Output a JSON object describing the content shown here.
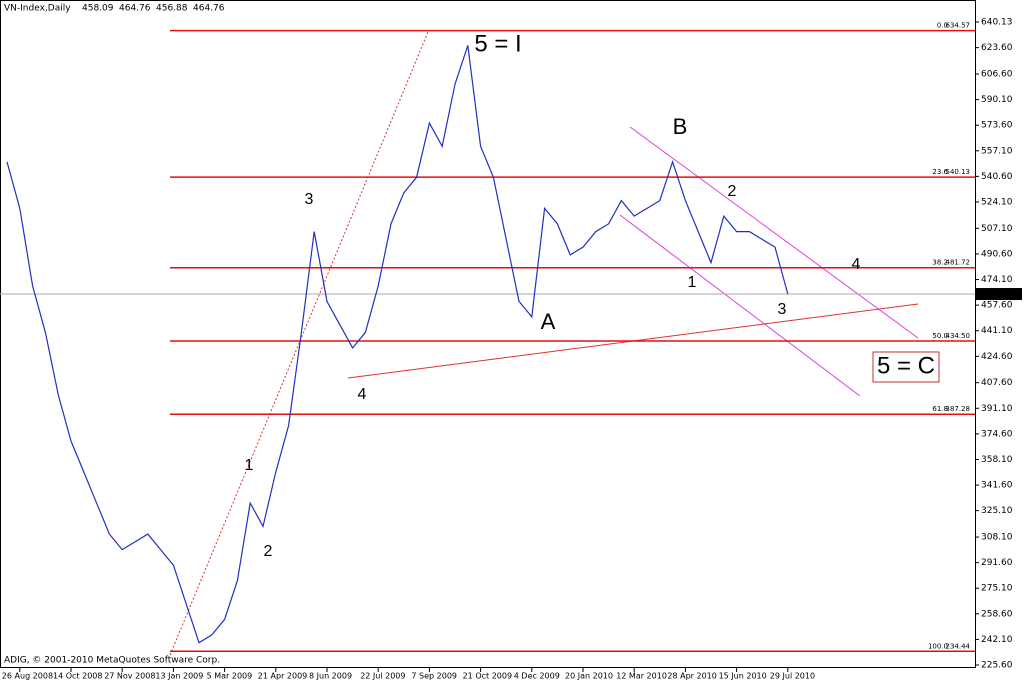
{
  "chart_data": {
    "type": "line",
    "title": "VN-Index,Daily",
    "ohlc": [
      {
        "value": 458.09,
        "label": "458.09"
      },
      {
        "value": 464.76,
        "label": "464.76"
      },
      {
        "value": 456.88,
        "label": "456.88"
      },
      {
        "value": 464.76,
        "label": "464.76"
      }
    ],
    "copyright": "ADIG, © 2001-2010 MetaQuotes Software Corp.",
    "last_price": {
      "value": 464.76,
      "label": "464.76"
    },
    "categories": [
      null,
      "26 Aug 2008",
      null,
      null,
      null,
      "14 Oct 2008",
      null,
      null,
      null,
      "27 Nov 2008",
      null,
      null,
      null,
      "13 Jan 2009",
      null,
      null,
      null,
      "5 Mar 2009",
      null,
      null,
      null,
      "21 Apr 2009",
      null,
      null,
      null,
      "8 Jun 2009",
      null,
      null,
      null,
      "22 Jul 2009",
      null,
      null,
      null,
      "7 Sep 2009",
      null,
      null,
      null,
      "21 Oct 2009",
      null,
      null,
      null,
      "4 Dec 2009",
      null,
      null,
      null,
      "20 Jan 2010",
      null,
      null,
      null,
      "12 Mar 2010",
      null,
      null,
      null,
      "28 Apr 2010",
      null,
      null,
      null,
      "15 Jun 2010",
      null,
      null,
      null,
      "29 Jul 2010"
    ],
    "series": [
      {
        "color": "#2030c0",
        "values": [
          550,
          520,
          470,
          440,
          400,
          370,
          350,
          330,
          310,
          300,
          305,
          310,
          300,
          290,
          265,
          240,
          245,
          255,
          280,
          330,
          315,
          350,
          380,
          440,
          505,
          460,
          445,
          430,
          440,
          470,
          510,
          530,
          540,
          575,
          560,
          600,
          625,
          560,
          540,
          500,
          460,
          450,
          520,
          510,
          490,
          495,
          505,
          510,
          525,
          515,
          520,
          525,
          550,
          525,
          505,
          485,
          515,
          505,
          505,
          500,
          495,
          464.76
        ]
      }
    ],
    "ylim": [
      223.67,
      654.31
    ],
    "yticks": [
      {
        "value": 640.13,
        "label": "640.13"
      },
      {
        "value": 623.6,
        "label": "623.60"
      },
      {
        "value": 606.6,
        "label": "606.60"
      },
      {
        "value": 590.1,
        "label": "590.10"
      },
      {
        "value": 573.6,
        "label": "573.60"
      },
      {
        "value": 557.1,
        "label": "557.10"
      },
      {
        "value": 540.6,
        "label": "540.60"
      },
      {
        "value": 524.1,
        "label": "524.10"
      },
      {
        "value": 507.1,
        "label": "507.10"
      },
      {
        "value": 490.6,
        "label": "490.60"
      },
      {
        "value": 474.1,
        "label": "474.10"
      },
      {
        "value": 457.6,
        "label": "457.60"
      },
      {
        "value": 441.1,
        "label": "441.10"
      },
      {
        "value": 424.6,
        "label": "424.60"
      },
      {
        "value": 407.6,
        "label": "407.60"
      },
      {
        "value": 391.1,
        "label": "391.10"
      },
      {
        "value": 374.6,
        "label": "374.60"
      },
      {
        "value": 358.1,
        "label": "358.10"
      },
      {
        "value": 341.6,
        "label": "341.60"
      },
      {
        "value": 325.1,
        "label": "325.10"
      },
      {
        "value": 308.1,
        "label": "308.10"
      },
      {
        "value": 291.6,
        "label": "291.60"
      },
      {
        "value": 275.1,
        "label": "275.10"
      },
      {
        "value": 258.6,
        "label": "258.60"
      },
      {
        "value": 242.1,
        "label": "242.10"
      },
      {
        "value": 225.6,
        "label": "225.60"
      }
    ],
    "fib_levels": [
      {
        "ratio": "0.0",
        "price": {
          "value": 634.57,
          "label": "634.57"
        }
      },
      {
        "ratio": "23.6",
        "price": {
          "value": 540.13,
          "label": "540.13"
        }
      },
      {
        "ratio": "38.2",
        "price": {
          "value": 481.72,
          "label": "481.72"
        }
      },
      {
        "ratio": "50.0",
        "price": {
          "value": 434.5,
          "label": "434.50"
        }
      },
      {
        "ratio": "61.8",
        "price": {
          "value": 387.28,
          "label": "387.28"
        }
      },
      {
        "ratio": "100.0",
        "price": {
          "value": 234.44,
          "label": "234.44"
        }
      }
    ],
    "annotations": [
      "5 = I",
      "B",
      "2",
      "4",
      "1",
      "3",
      "A",
      "5 = C",
      "3",
      "1",
      "2",
      "4"
    ]
  }
}
